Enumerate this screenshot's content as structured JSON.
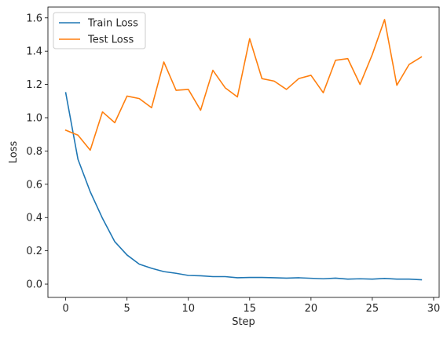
{
  "chart_data": {
    "type": "line",
    "title": "",
    "xlabel": "Step",
    "ylabel": "Loss",
    "xlim": [
      -1.45,
      30.45
    ],
    "ylim": [
      -0.08,
      1.665
    ],
    "xticks": [
      0,
      5,
      10,
      15,
      20,
      25,
      30
    ],
    "yticks": [
      0.0,
      0.2,
      0.4,
      0.6,
      0.8,
      1.0,
      1.2,
      1.4,
      1.6
    ],
    "grid": false,
    "legend_position": "top-left",
    "x": [
      0,
      1,
      2,
      3,
      4,
      5,
      6,
      7,
      8,
      9,
      10,
      11,
      12,
      13,
      14,
      15,
      16,
      17,
      18,
      19,
      20,
      21,
      22,
      23,
      24,
      25,
      26,
      27,
      28,
      29
    ],
    "series": [
      {
        "name": "Train Loss",
        "color": "#1f77b4",
        "values": [
          1.15,
          0.75,
          0.555,
          0.395,
          0.255,
          0.175,
          0.12,
          0.095,
          0.075,
          0.065,
          0.052,
          0.05,
          0.045,
          0.045,
          0.038,
          0.04,
          0.04,
          0.038,
          0.036,
          0.038,
          0.035,
          0.032,
          0.036,
          0.03,
          0.032,
          0.03,
          0.034,
          0.03,
          0.03,
          0.026
        ]
      },
      {
        "name": "Test Loss",
        "color": "#ff7f0e",
        "values": [
          0.925,
          0.895,
          0.805,
          1.035,
          0.97,
          1.13,
          1.115,
          1.06,
          1.335,
          1.165,
          1.17,
          1.045,
          1.285,
          1.18,
          1.125,
          1.475,
          1.235,
          1.22,
          1.17,
          1.235,
          1.255,
          1.15,
          1.345,
          1.355,
          1.2,
          1.38,
          1.59,
          1.195,
          1.32,
          1.365
        ]
      }
    ]
  }
}
